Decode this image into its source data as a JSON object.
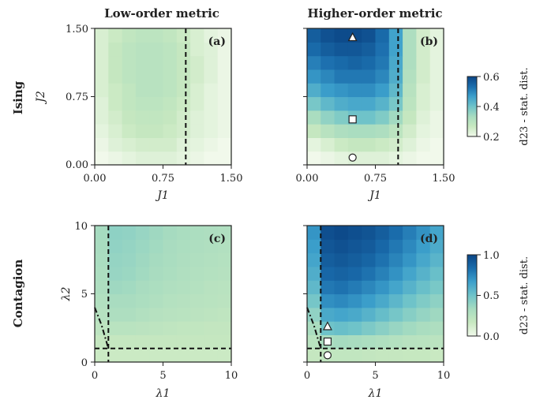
{
  "column_titles": [
    "Low-order metric",
    "Higher-order metric"
  ],
  "row_titles": [
    "Ising",
    "Contagion"
  ],
  "colors": {
    "colormap": [
      "#f1f9eb",
      "#c7e8c0",
      "#a8dcc0",
      "#6fc3c9",
      "#3c9fcb",
      "#1b6ead",
      "#0b4585"
    ],
    "frame": "#222222",
    "critical_line": "#111111",
    "marker_fill": "#ffffff"
  },
  "chart_data": [
    {
      "type": "heatmap",
      "panel": "(a)",
      "xlabel": "J1",
      "ylabel": "J2",
      "x_ticks": [
        "0.00",
        "0.75",
        "1.50"
      ],
      "y_ticks": [
        "0.00",
        "0.75",
        "1.50"
      ],
      "xlim": [
        0,
        1.5
      ],
      "ylim": [
        0,
        1.5
      ],
      "cells_x": 10,
      "cells_y": 10,
      "value_range": [
        0.2,
        0.6
      ],
      "z": [
        [
          0.2,
          0.21,
          0.22,
          0.23,
          0.23,
          0.23,
          0.22,
          0.21,
          0.2,
          0.2
        ],
        [
          0.21,
          0.23,
          0.24,
          0.25,
          0.25,
          0.25,
          0.23,
          0.22,
          0.21,
          0.2
        ],
        [
          0.22,
          0.24,
          0.26,
          0.27,
          0.27,
          0.26,
          0.25,
          0.23,
          0.22,
          0.21
        ],
        [
          0.23,
          0.25,
          0.27,
          0.28,
          0.28,
          0.27,
          0.25,
          0.23,
          0.22,
          0.21
        ],
        [
          0.23,
          0.26,
          0.28,
          0.29,
          0.29,
          0.28,
          0.26,
          0.24,
          0.22,
          0.21
        ],
        [
          0.24,
          0.26,
          0.28,
          0.3,
          0.3,
          0.29,
          0.27,
          0.24,
          0.22,
          0.21
        ],
        [
          0.24,
          0.27,
          0.29,
          0.3,
          0.3,
          0.29,
          0.27,
          0.25,
          0.23,
          0.21
        ],
        [
          0.24,
          0.27,
          0.29,
          0.3,
          0.3,
          0.29,
          0.27,
          0.25,
          0.23,
          0.21
        ],
        [
          0.24,
          0.27,
          0.29,
          0.3,
          0.3,
          0.29,
          0.27,
          0.24,
          0.23,
          0.21
        ],
        [
          0.24,
          0.26,
          0.28,
          0.29,
          0.29,
          0.28,
          0.26,
          0.24,
          0.22,
          0.21
        ]
      ],
      "critical_lines": [
        {
          "orientation": "vertical",
          "value": 1.0,
          "style": "dashed"
        }
      ]
    },
    {
      "type": "heatmap",
      "panel": "(b)",
      "xlabel": "J1",
      "ylabel": "J2",
      "x_ticks": [
        "0.00",
        "0.75",
        "1.50"
      ],
      "y_ticks": [
        "",
        "",
        ""
      ],
      "xlim": [
        0,
        1.5
      ],
      "ylim": [
        0,
        1.5
      ],
      "cells_x": 10,
      "cells_y": 10,
      "value_range": [
        0.2,
        0.6
      ],
      "z": [
        [
          0.2,
          0.21,
          0.22,
          0.23,
          0.23,
          0.23,
          0.22,
          0.21,
          0.2,
          0.2
        ],
        [
          0.22,
          0.24,
          0.26,
          0.27,
          0.27,
          0.26,
          0.25,
          0.23,
          0.21,
          0.2
        ],
        [
          0.27,
          0.3,
          0.32,
          0.33,
          0.33,
          0.32,
          0.29,
          0.25,
          0.22,
          0.21
        ],
        [
          0.33,
          0.36,
          0.38,
          0.4,
          0.4,
          0.38,
          0.34,
          0.27,
          0.23,
          0.21
        ],
        [
          0.39,
          0.42,
          0.44,
          0.45,
          0.45,
          0.43,
          0.39,
          0.29,
          0.24,
          0.22
        ],
        [
          0.44,
          0.47,
          0.48,
          0.49,
          0.49,
          0.47,
          0.42,
          0.3,
          0.24,
          0.22
        ],
        [
          0.48,
          0.5,
          0.52,
          0.52,
          0.52,
          0.5,
          0.44,
          0.31,
          0.25,
          0.22
        ],
        [
          0.51,
          0.53,
          0.54,
          0.55,
          0.54,
          0.52,
          0.45,
          0.32,
          0.25,
          0.22
        ],
        [
          0.54,
          0.56,
          0.57,
          0.57,
          0.56,
          0.53,
          0.46,
          0.32,
          0.25,
          0.22
        ],
        [
          0.56,
          0.58,
          0.59,
          0.59,
          0.58,
          0.54,
          0.46,
          0.32,
          0.25,
          0.22
        ]
      ],
      "critical_lines": [
        {
          "orientation": "vertical",
          "value": 1.0,
          "style": "dashed"
        }
      ],
      "markers": [
        {
          "shape": "triangle",
          "x": 0.5,
          "y": 1.4
        },
        {
          "shape": "square",
          "x": 0.5,
          "y": 0.5
        },
        {
          "shape": "circle",
          "x": 0.5,
          "y": 0.08
        }
      ]
    },
    {
      "type": "heatmap",
      "panel": "(c)",
      "xlabel": "λ1",
      "ylabel": "λ2",
      "x_ticks": [
        "0",
        "5",
        "10"
      ],
      "y_ticks": [
        "0",
        "5",
        "10"
      ],
      "xlim": [
        0,
        10
      ],
      "ylim": [
        0,
        10
      ],
      "cells_x": 10,
      "cells_y": 10,
      "value_range": [
        0.0,
        1.0
      ],
      "z": [
        [
          0.15,
          0.15,
          0.15,
          0.15,
          0.15,
          0.15,
          0.15,
          0.15,
          0.15,
          0.15
        ],
        [
          0.18,
          0.18,
          0.18,
          0.18,
          0.18,
          0.18,
          0.18,
          0.18,
          0.18,
          0.18
        ],
        [
          0.22,
          0.24,
          0.24,
          0.23,
          0.22,
          0.21,
          0.2,
          0.2,
          0.19,
          0.19
        ],
        [
          0.26,
          0.3,
          0.3,
          0.28,
          0.26,
          0.25,
          0.24,
          0.23,
          0.22,
          0.21
        ],
        [
          0.28,
          0.33,
          0.33,
          0.31,
          0.29,
          0.27,
          0.26,
          0.25,
          0.24,
          0.23
        ],
        [
          0.3,
          0.36,
          0.35,
          0.33,
          0.31,
          0.29,
          0.28,
          0.27,
          0.25,
          0.24
        ],
        [
          0.31,
          0.38,
          0.37,
          0.35,
          0.33,
          0.31,
          0.29,
          0.28,
          0.27,
          0.26
        ],
        [
          0.32,
          0.39,
          0.38,
          0.36,
          0.34,
          0.32,
          0.3,
          0.29,
          0.28,
          0.27
        ],
        [
          0.33,
          0.4,
          0.39,
          0.37,
          0.35,
          0.33,
          0.31,
          0.3,
          0.29,
          0.28
        ],
        [
          0.34,
          0.41,
          0.4,
          0.38,
          0.36,
          0.34,
          0.32,
          0.31,
          0.3,
          0.29
        ]
      ],
      "critical_lines": [
        {
          "orientation": "vertical",
          "value": 1.0,
          "style": "dashed"
        },
        {
          "orientation": "horizontal",
          "value": 1.0,
          "style": "dashed"
        }
      ],
      "boundary_curve": {
        "style": "dashdot",
        "points": [
          [
            0.0,
            4.0
          ],
          [
            0.5,
            2.7
          ],
          [
            1.0,
            1.0
          ]
        ]
      }
    },
    {
      "type": "heatmap",
      "panel": "(d)",
      "xlabel": "λ1",
      "ylabel": "λ2",
      "x_ticks": [
        "0",
        "5",
        "10"
      ],
      "y_ticks": [
        "",
        "",
        ""
      ],
      "xlim": [
        0,
        10
      ],
      "ylim": [
        0,
        10
      ],
      "cells_x": 10,
      "cells_y": 10,
      "value_range": [
        0.0,
        1.0
      ],
      "z": [
        [
          0.18,
          0.2,
          0.2,
          0.2,
          0.19,
          0.18,
          0.18,
          0.17,
          0.17,
          0.16
        ],
        [
          0.24,
          0.32,
          0.34,
          0.33,
          0.31,
          0.29,
          0.27,
          0.25,
          0.24,
          0.23
        ],
        [
          0.32,
          0.5,
          0.52,
          0.5,
          0.46,
          0.42,
          0.38,
          0.35,
          0.32,
          0.3
        ],
        [
          0.4,
          0.62,
          0.64,
          0.62,
          0.58,
          0.53,
          0.48,
          0.43,
          0.39,
          0.36
        ],
        [
          0.48,
          0.72,
          0.74,
          0.71,
          0.67,
          0.62,
          0.56,
          0.5,
          0.45,
          0.41
        ],
        [
          0.55,
          0.8,
          0.82,
          0.79,
          0.75,
          0.7,
          0.64,
          0.58,
          0.52,
          0.47
        ],
        [
          0.6,
          0.86,
          0.88,
          0.86,
          0.82,
          0.77,
          0.71,
          0.64,
          0.58,
          0.52
        ],
        [
          0.64,
          0.9,
          0.92,
          0.9,
          0.87,
          0.82,
          0.76,
          0.7,
          0.63,
          0.57
        ],
        [
          0.67,
          0.93,
          0.95,
          0.93,
          0.91,
          0.86,
          0.8,
          0.74,
          0.67,
          0.61
        ],
        [
          0.7,
          0.96,
          0.98,
          0.96,
          0.94,
          0.9,
          0.84,
          0.78,
          0.71,
          0.64
        ]
      ],
      "critical_lines": [
        {
          "orientation": "vertical",
          "value": 1.0,
          "style": "dashed"
        },
        {
          "orientation": "horizontal",
          "value": 1.0,
          "style": "dashed"
        }
      ],
      "boundary_curve": {
        "style": "dashdot",
        "points": [
          [
            0.0,
            4.0
          ],
          [
            0.5,
            2.7
          ],
          [
            1.0,
            1.0
          ]
        ]
      },
      "markers": [
        {
          "shape": "triangle",
          "x": 1.5,
          "y": 2.6
        },
        {
          "shape": "square",
          "x": 1.5,
          "y": 1.5
        },
        {
          "shape": "circle",
          "x": 1.5,
          "y": 0.5
        }
      ]
    }
  ],
  "colorbars": [
    {
      "label": "d23 - stat. dist.",
      "min": 0.2,
      "max": 0.6,
      "ticks": [
        0.6,
        0.4,
        0.2
      ],
      "tick_labels": [
        "0.6",
        "0.4",
        "0.2"
      ]
    },
    {
      "label": "d23 - stat. dist.",
      "min": 0.0,
      "max": 1.0,
      "ticks": [
        1.0,
        0.5,
        0.0
      ],
      "tick_labels": [
        "1.0",
        "0.5",
        "0.0"
      ]
    }
  ]
}
